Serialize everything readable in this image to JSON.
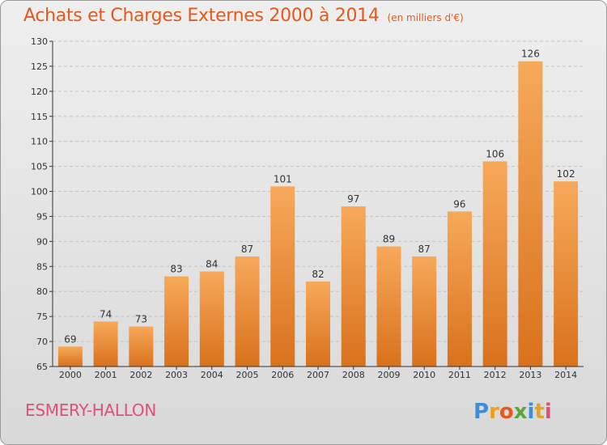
{
  "title": "Achats et Charges Externes 2000 à 2014",
  "unit": "(en milliers d'€)",
  "commune": "ESMERY-HALLON",
  "logo_text": "Proxiti",
  "colors": {
    "title": "#e55a1a",
    "commune": "#e0507a",
    "bar_top": "#f7a95a",
    "bar_bottom": "#d9711c"
  },
  "chart_data": {
    "type": "bar",
    "title": "Achats et Charges Externes 2000 à 2014",
    "xlabel": "",
    "ylabel": "",
    "categories": [
      "2000",
      "2001",
      "2002",
      "2003",
      "2004",
      "2005",
      "2006",
      "2007",
      "2008",
      "2009",
      "2010",
      "2011",
      "2012",
      "2013",
      "2014"
    ],
    "values": [
      69,
      74,
      73,
      83,
      84,
      87,
      101,
      82,
      97,
      89,
      87,
      96,
      106,
      126,
      102
    ],
    "ylim": [
      65,
      130
    ],
    "yticks": [
      65,
      70,
      75,
      80,
      85,
      90,
      95,
      100,
      105,
      110,
      115,
      120,
      125,
      130
    ],
    "grid": true,
    "data_labels": true
  }
}
